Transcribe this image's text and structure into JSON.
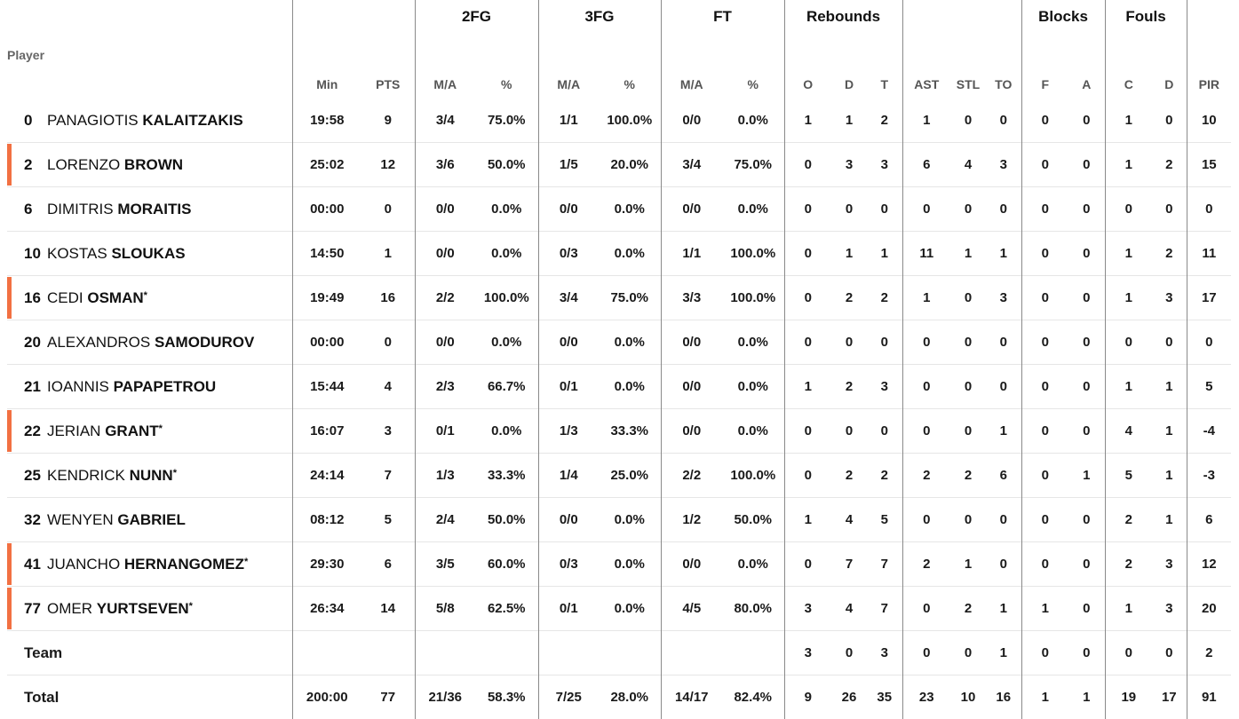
{
  "header": {
    "groups": {
      "fg2": "2FG",
      "fg3": "3FG",
      "ft": "FT",
      "rebounds": "Rebounds",
      "blocks": "Blocks",
      "fouls": "Fouls"
    },
    "cols": {
      "player": "Player",
      "min": "Min",
      "pts": "PTS",
      "fg2_ma": "M/A",
      "fg2_pct": "%",
      "fg3_ma": "M/A",
      "fg3_pct": "%",
      "ft_ma": "M/A",
      "ft_pct": "%",
      "o": "O",
      "d": "D",
      "t": "T",
      "ast": "AST",
      "stl": "STL",
      "to": "TO",
      "bf": "F",
      "ba": "A",
      "fc": "C",
      "fd": "D",
      "pir": "PIR"
    }
  },
  "accent_color": "#f27042",
  "players": [
    {
      "num": "0",
      "first": "PANAGIOTIS",
      "last": "KALAITZAKIS",
      "starter": false,
      "star": "",
      "min": "19:58",
      "pts": "9",
      "fg2_ma": "3/4",
      "fg2_pct": "75.0%",
      "fg3_ma": "1/1",
      "fg3_pct": "100.0%",
      "ft_ma": "0/0",
      "ft_pct": "0.0%",
      "o": "1",
      "d": "1",
      "t": "2",
      "ast": "1",
      "stl": "0",
      "to": "0",
      "bf": "0",
      "ba": "0",
      "fc": "1",
      "fd": "0",
      "pir": "10"
    },
    {
      "num": "2",
      "first": "LORENZO",
      "last": "BROWN",
      "starter": true,
      "star": "",
      "min": "25:02",
      "pts": "12",
      "fg2_ma": "3/6",
      "fg2_pct": "50.0%",
      "fg3_ma": "1/5",
      "fg3_pct": "20.0%",
      "ft_ma": "3/4",
      "ft_pct": "75.0%",
      "o": "0",
      "d": "3",
      "t": "3",
      "ast": "6",
      "stl": "4",
      "to": "3",
      "bf": "0",
      "ba": "0",
      "fc": "1",
      "fd": "2",
      "pir": "15"
    },
    {
      "num": "6",
      "first": "DIMITRIS",
      "last": "MORAITIS",
      "starter": false,
      "star": "",
      "min": "00:00",
      "pts": "0",
      "fg2_ma": "0/0",
      "fg2_pct": "0.0%",
      "fg3_ma": "0/0",
      "fg3_pct": "0.0%",
      "ft_ma": "0/0",
      "ft_pct": "0.0%",
      "o": "0",
      "d": "0",
      "t": "0",
      "ast": "0",
      "stl": "0",
      "to": "0",
      "bf": "0",
      "ba": "0",
      "fc": "0",
      "fd": "0",
      "pir": "0"
    },
    {
      "num": "10",
      "first": "KOSTAS",
      "last": "SLOUKAS",
      "starter": false,
      "star": "",
      "min": "14:50",
      "pts": "1",
      "fg2_ma": "0/0",
      "fg2_pct": "0.0%",
      "fg3_ma": "0/3",
      "fg3_pct": "0.0%",
      "ft_ma": "1/1",
      "ft_pct": "100.0%",
      "o": "0",
      "d": "1",
      "t": "1",
      "ast": "11",
      "stl": "1",
      "to": "1",
      "bf": "0",
      "ba": "0",
      "fc": "1",
      "fd": "2",
      "pir": "11"
    },
    {
      "num": "16",
      "first": "CEDI",
      "last": "OSMAN",
      "starter": true,
      "star": "*",
      "min": "19:49",
      "pts": "16",
      "fg2_ma": "2/2",
      "fg2_pct": "100.0%",
      "fg3_ma": "3/4",
      "fg3_pct": "75.0%",
      "ft_ma": "3/3",
      "ft_pct": "100.0%",
      "o": "0",
      "d": "2",
      "t": "2",
      "ast": "1",
      "stl": "0",
      "to": "3",
      "bf": "0",
      "ba": "0",
      "fc": "1",
      "fd": "3",
      "pir": "17"
    },
    {
      "num": "20",
      "first": "ALEXANDROS",
      "last": "SAMODUROV",
      "starter": false,
      "star": "",
      "min": "00:00",
      "pts": "0",
      "fg2_ma": "0/0",
      "fg2_pct": "0.0%",
      "fg3_ma": "0/0",
      "fg3_pct": "0.0%",
      "ft_ma": "0/0",
      "ft_pct": "0.0%",
      "o": "0",
      "d": "0",
      "t": "0",
      "ast": "0",
      "stl": "0",
      "to": "0",
      "bf": "0",
      "ba": "0",
      "fc": "0",
      "fd": "0",
      "pir": "0"
    },
    {
      "num": "21",
      "first": "IOANNIS",
      "last": "PAPAPETROU",
      "starter": false,
      "star": "",
      "min": "15:44",
      "pts": "4",
      "fg2_ma": "2/3",
      "fg2_pct": "66.7%",
      "fg3_ma": "0/1",
      "fg3_pct": "0.0%",
      "ft_ma": "0/0",
      "ft_pct": "0.0%",
      "o": "1",
      "d": "2",
      "t": "3",
      "ast": "0",
      "stl": "0",
      "to": "0",
      "bf": "0",
      "ba": "0",
      "fc": "1",
      "fd": "1",
      "pir": "5"
    },
    {
      "num": "22",
      "first": "JERIAN",
      "last": "GRANT",
      "starter": true,
      "star": "*",
      "min": "16:07",
      "pts": "3",
      "fg2_ma": "0/1",
      "fg2_pct": "0.0%",
      "fg3_ma": "1/3",
      "fg3_pct": "33.3%",
      "ft_ma": "0/0",
      "ft_pct": "0.0%",
      "o": "0",
      "d": "0",
      "t": "0",
      "ast": "0",
      "stl": "0",
      "to": "1",
      "bf": "0",
      "ba": "0",
      "fc": "4",
      "fd": "1",
      "pir": "-4"
    },
    {
      "num": "25",
      "first": "KENDRICK",
      "last": "NUNN",
      "starter": false,
      "star": "*",
      "min": "24:14",
      "pts": "7",
      "fg2_ma": "1/3",
      "fg2_pct": "33.3%",
      "fg3_ma": "1/4",
      "fg3_pct": "25.0%",
      "ft_ma": "2/2",
      "ft_pct": "100.0%",
      "o": "0",
      "d": "2",
      "t": "2",
      "ast": "2",
      "stl": "2",
      "to": "6",
      "bf": "0",
      "ba": "1",
      "fc": "5",
      "fd": "1",
      "pir": "-3"
    },
    {
      "num": "32",
      "first": "WENYEN",
      "last": "GABRIEL",
      "starter": false,
      "star": "",
      "min": "08:12",
      "pts": "5",
      "fg2_ma": "2/4",
      "fg2_pct": "50.0%",
      "fg3_ma": "0/0",
      "fg3_pct": "0.0%",
      "ft_ma": "1/2",
      "ft_pct": "50.0%",
      "o": "1",
      "d": "4",
      "t": "5",
      "ast": "0",
      "stl": "0",
      "to": "0",
      "bf": "0",
      "ba": "0",
      "fc": "2",
      "fd": "1",
      "pir": "6"
    },
    {
      "num": "41",
      "first": "JUANCHO",
      "last": "HERNANGOMEZ",
      "starter": true,
      "star": "*",
      "min": "29:30",
      "pts": "6",
      "fg2_ma": "3/5",
      "fg2_pct": "60.0%",
      "fg3_ma": "0/3",
      "fg3_pct": "0.0%",
      "ft_ma": "0/0",
      "ft_pct": "0.0%",
      "o": "0",
      "d": "7",
      "t": "7",
      "ast": "2",
      "stl": "1",
      "to": "0",
      "bf": "0",
      "ba": "0",
      "fc": "2",
      "fd": "3",
      "pir": "12"
    },
    {
      "num": "77",
      "first": "OMER",
      "last": "YURTSEVEN",
      "starter": true,
      "star": "*",
      "min": "26:34",
      "pts": "14",
      "fg2_ma": "5/8",
      "fg2_pct": "62.5%",
      "fg3_ma": "0/1",
      "fg3_pct": "0.0%",
      "ft_ma": "4/5",
      "ft_pct": "80.0%",
      "o": "3",
      "d": "4",
      "t": "7",
      "ast": "0",
      "stl": "2",
      "to": "1",
      "bf": "1",
      "ba": "0",
      "fc": "1",
      "fd": "3",
      "pir": "20"
    }
  ],
  "team": {
    "label": "Team",
    "min": "",
    "pts": "",
    "fg2_ma": "",
    "fg2_pct": "",
    "fg3_ma": "",
    "fg3_pct": "",
    "ft_ma": "",
    "ft_pct": "",
    "o": "3",
    "d": "0",
    "t": "3",
    "ast": "0",
    "stl": "0",
    "to": "1",
    "bf": "0",
    "ba": "0",
    "fc": "0",
    "fd": "0",
    "pir": "2"
  },
  "total": {
    "label": "Total",
    "min": "200:00",
    "pts": "77",
    "fg2_ma": "21/36",
    "fg2_pct": "58.3%",
    "fg3_ma": "7/25",
    "fg3_pct": "28.0%",
    "ft_ma": "14/17",
    "ft_pct": "82.4%",
    "o": "9",
    "d": "26",
    "t": "35",
    "ast": "23",
    "stl": "10",
    "to": "16",
    "bf": "1",
    "ba": "1",
    "fc": "19",
    "fd": "17",
    "pir": "91"
  }
}
